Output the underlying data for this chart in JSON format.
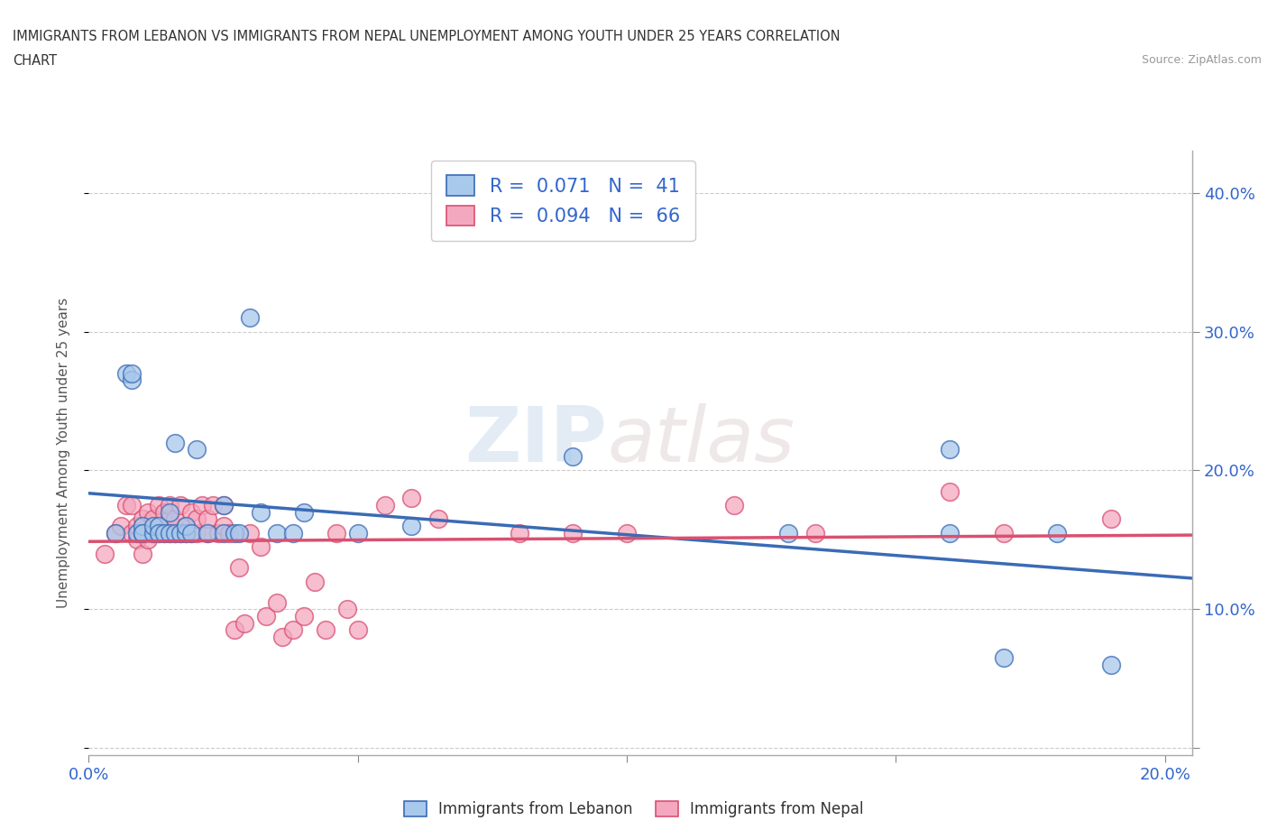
{
  "title_line1": "IMMIGRANTS FROM LEBANON VS IMMIGRANTS FROM NEPAL UNEMPLOYMENT AMONG YOUTH UNDER 25 YEARS CORRELATION",
  "title_line2": "CHART",
  "source": "Source: ZipAtlas.com",
  "ylabel": "Unemployment Among Youth under 25 years",
  "legend_label1": "Immigrants from Lebanon",
  "legend_label2": "Immigrants from Nepal",
  "R1": 0.071,
  "N1": 41,
  "R2": 0.094,
  "N2": 66,
  "color1": "#A8C8EC",
  "color2": "#F4A8C0",
  "line_color1": "#3A6BB5",
  "line_color2": "#D95070",
  "xlim": [
    0.0,
    0.205
  ],
  "ylim": [
    -0.005,
    0.43
  ],
  "xticks": [
    0.0,
    0.05,
    0.1,
    0.15,
    0.2
  ],
  "yticks": [
    0.0,
    0.1,
    0.2,
    0.3,
    0.4
  ],
  "watermark_zip": "ZIP",
  "watermark_atlas": "atlas",
  "lebanon_x": [
    0.005,
    0.007,
    0.008,
    0.008,
    0.009,
    0.01,
    0.01,
    0.01,
    0.012,
    0.012,
    0.013,
    0.013,
    0.014,
    0.015,
    0.015,
    0.016,
    0.016,
    0.017,
    0.018,
    0.018,
    0.019,
    0.02,
    0.022,
    0.025,
    0.025,
    0.027,
    0.028,
    0.03,
    0.032,
    0.035,
    0.038,
    0.04,
    0.05,
    0.06,
    0.09,
    0.13,
    0.16,
    0.16,
    0.17,
    0.18,
    0.19
  ],
  "lebanon_y": [
    0.155,
    0.27,
    0.265,
    0.27,
    0.155,
    0.155,
    0.16,
    0.155,
    0.155,
    0.16,
    0.16,
    0.155,
    0.155,
    0.155,
    0.17,
    0.22,
    0.155,
    0.155,
    0.155,
    0.16,
    0.155,
    0.215,
    0.155,
    0.155,
    0.175,
    0.155,
    0.155,
    0.31,
    0.17,
    0.155,
    0.155,
    0.17,
    0.155,
    0.16,
    0.21,
    0.155,
    0.155,
    0.215,
    0.065,
    0.155,
    0.06
  ],
  "nepal_x": [
    0.003,
    0.005,
    0.006,
    0.007,
    0.008,
    0.008,
    0.009,
    0.009,
    0.01,
    0.01,
    0.01,
    0.011,
    0.011,
    0.012,
    0.012,
    0.013,
    0.013,
    0.014,
    0.014,
    0.015,
    0.015,
    0.015,
    0.016,
    0.016,
    0.017,
    0.017,
    0.018,
    0.018,
    0.019,
    0.019,
    0.02,
    0.02,
    0.021,
    0.022,
    0.022,
    0.023,
    0.024,
    0.025,
    0.025,
    0.026,
    0.027,
    0.028,
    0.029,
    0.03,
    0.032,
    0.033,
    0.035,
    0.036,
    0.038,
    0.04,
    0.042,
    0.044,
    0.046,
    0.048,
    0.05,
    0.055,
    0.06,
    0.065,
    0.08,
    0.09,
    0.1,
    0.12,
    0.135,
    0.16,
    0.17,
    0.19
  ],
  "nepal_y": [
    0.14,
    0.155,
    0.16,
    0.175,
    0.155,
    0.175,
    0.15,
    0.16,
    0.14,
    0.155,
    0.165,
    0.15,
    0.17,
    0.155,
    0.165,
    0.175,
    0.155,
    0.155,
    0.17,
    0.155,
    0.165,
    0.175,
    0.155,
    0.165,
    0.155,
    0.175,
    0.155,
    0.16,
    0.155,
    0.17,
    0.155,
    0.165,
    0.175,
    0.155,
    0.165,
    0.175,
    0.155,
    0.16,
    0.175,
    0.155,
    0.085,
    0.13,
    0.09,
    0.155,
    0.145,
    0.095,
    0.105,
    0.08,
    0.085,
    0.095,
    0.12,
    0.085,
    0.155,
    0.1,
    0.085,
    0.175,
    0.18,
    0.165,
    0.155,
    0.155,
    0.155,
    0.175,
    0.155,
    0.185,
    0.155,
    0.165
  ]
}
